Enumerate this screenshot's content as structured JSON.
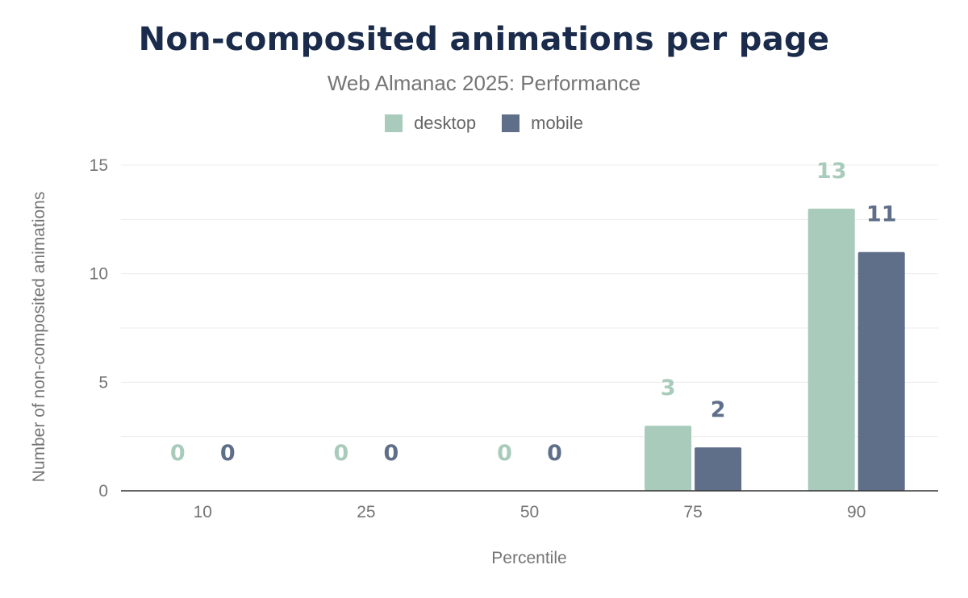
{
  "chart_data": {
    "type": "bar",
    "title": "Non-composited animations per page",
    "subtitle": "Web Almanac 2025: Performance",
    "xlabel": "Percentile",
    "ylabel": "Number of non-composited animations",
    "categories": [
      "10",
      "25",
      "50",
      "75",
      "90"
    ],
    "series": [
      {
        "name": "desktop",
        "color": "#a8cbbb",
        "values": [
          0,
          0,
          0,
          3,
          13
        ]
      },
      {
        "name": "mobile",
        "color": "#5f6f8a",
        "values": [
          0,
          0,
          0,
          2,
          11
        ]
      }
    ],
    "ylim": [
      0,
      15
    ],
    "yticks": [
      0,
      5,
      10,
      15
    ],
    "grid": true,
    "legend": "top-center"
  }
}
